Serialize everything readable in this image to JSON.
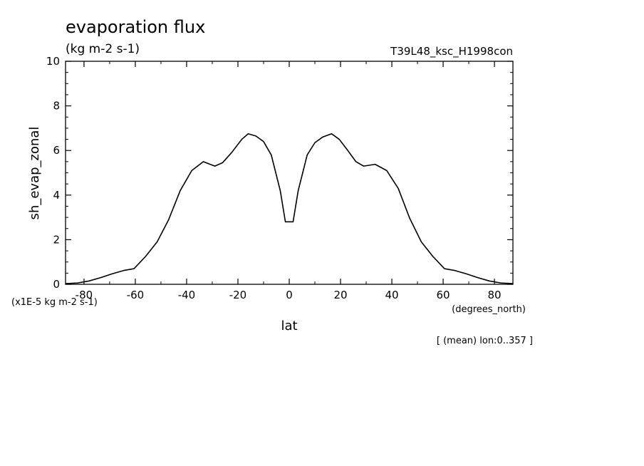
{
  "chart_data": {
    "type": "line",
    "title": "evaporation flux",
    "subtitle": "(kg m-2 s-1)",
    "run_label": "T39L48_ksc_H1998con",
    "ylabel": "sh_evap_zonal",
    "yunits": "(x1E-5 kg m-2 s-1)",
    "xlabel": "lat",
    "xunits": "(degrees_north)",
    "footnote": "[ (mean) lon:0..357 ]",
    "xlim": [
      -87.2,
      87.2
    ],
    "ylim": [
      0,
      10
    ],
    "xticks": [
      -80,
      -60,
      -40,
      -20,
      0,
      20,
      40,
      60,
      80
    ],
    "xtick_labels": [
      "-80",
      "-60",
      "-40",
      "-20",
      "0",
      "20",
      "40",
      "60",
      "80"
    ],
    "yticks": [
      0,
      2,
      4,
      6,
      8,
      10
    ],
    "ytick_labels": [
      "0",
      "2",
      "4",
      "6",
      "8",
      "10"
    ],
    "grid": false,
    "series": [
      {
        "x": [
          -87.2,
          -82.5,
          -78.0,
          -73.5,
          -69.0,
          -64.5,
          -60.5,
          -56.0,
          -51.5,
          -47.0,
          -42.5,
          -38.0,
          -33.5,
          -29.0,
          -26.0,
          -22.5,
          -18.5,
          -16.0,
          -13.0,
          -10.0,
          -7.0,
          -3.5,
          -1.5,
          1.5,
          3.5,
          7.0,
          10.0,
          13.0,
          16.5,
          19.5,
          22.5,
          26.0,
          29.0,
          33.5,
          38.0,
          42.5,
          47.0,
          51.5,
          56.0,
          60.5,
          64.5,
          69.0,
          73.5,
          78.0,
          82.5,
          87.2
        ],
        "y": [
          0.03,
          0.06,
          0.15,
          0.3,
          0.47,
          0.62,
          0.7,
          1.25,
          1.9,
          2.9,
          4.2,
          5.1,
          5.5,
          5.3,
          5.45,
          5.9,
          6.5,
          6.75,
          6.65,
          6.4,
          5.8,
          4.2,
          2.8,
          2.8,
          4.2,
          5.8,
          6.35,
          6.6,
          6.75,
          6.5,
          6.05,
          5.5,
          5.3,
          5.38,
          5.1,
          4.3,
          2.95,
          1.9,
          1.25,
          0.7,
          0.62,
          0.47,
          0.3,
          0.15,
          0.06,
          0.03
        ],
        "color": "#000000"
      }
    ]
  }
}
